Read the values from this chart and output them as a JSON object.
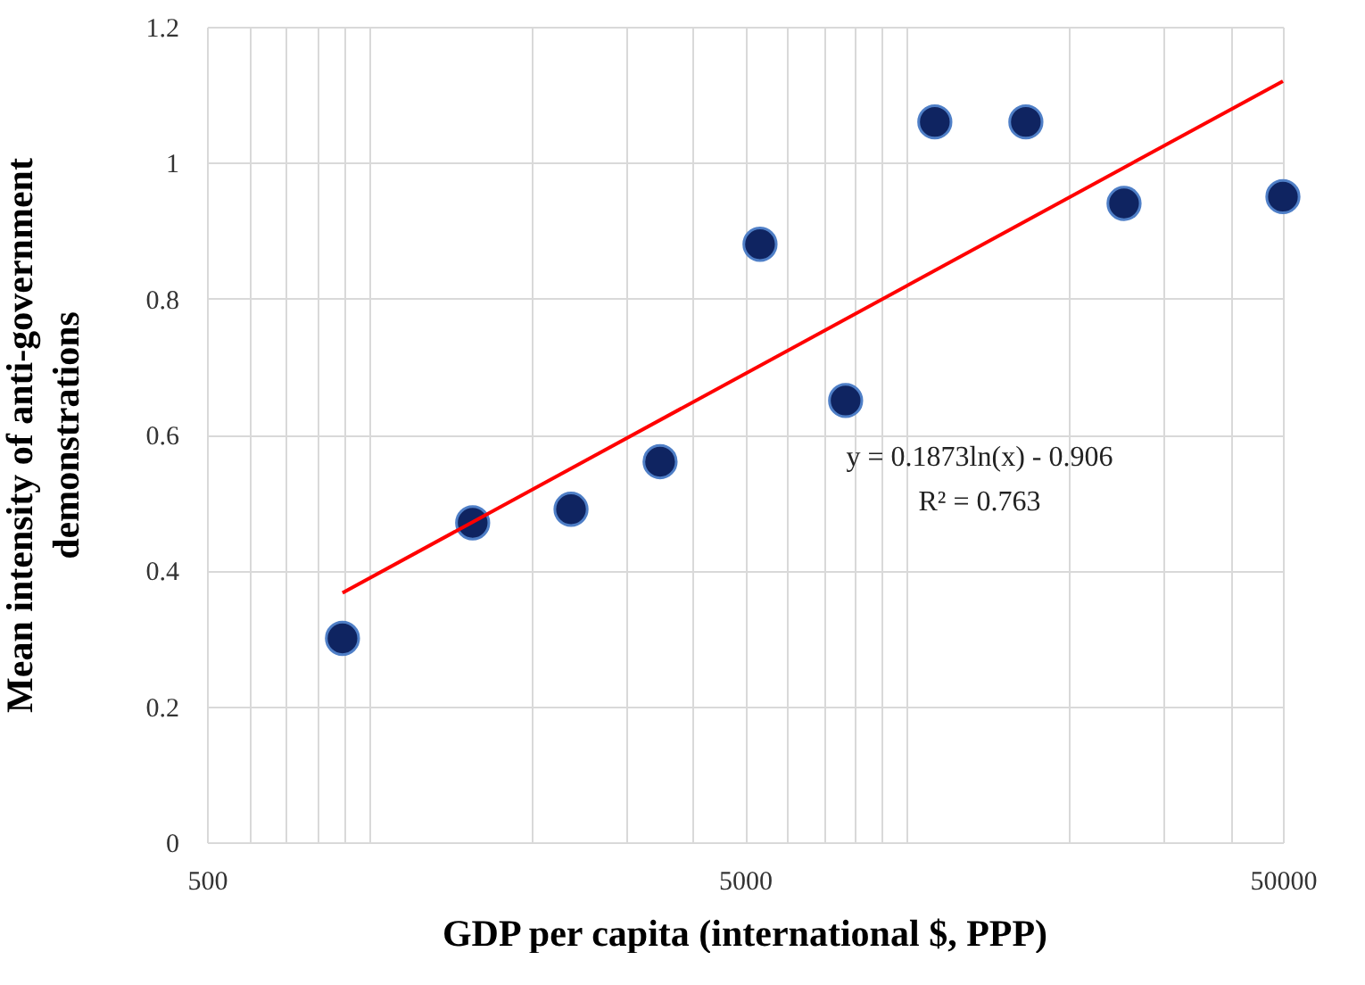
{
  "chart_data": {
    "type": "scatter",
    "xlabel": "GDP per capita (international $, PPP)",
    "ylabel": "Mean intensity of anti-government demonstrations",
    "log": "x",
    "grid": true,
    "marker": "circle",
    "xlim": [
      500,
      50000
    ],
    "ylim": [
      0,
      1.2
    ],
    "xticks": [
      500,
      {
        "value": 600,
        "label": null
      },
      {
        "value": 700,
        "label": null
      },
      {
        "value": 800,
        "label": null
      },
      {
        "value": 900,
        "label": null
      },
      {
        "value": 1000,
        "label": null
      },
      {
        "value": 2000,
        "label": null
      },
      {
        "value": 3000,
        "label": null
      },
      {
        "value": 4000,
        "label": null
      },
      5000,
      {
        "value": 6000,
        "label": null
      },
      {
        "value": 7000,
        "label": null
      },
      {
        "value": 8000,
        "label": null
      },
      {
        "value": 9000,
        "label": null
      },
      {
        "value": 10000,
        "label": null
      },
      {
        "value": 20000,
        "label": null
      },
      {
        "value": 30000,
        "label": null
      },
      {
        "value": 40000,
        "label": null
      },
      50000
    ],
    "yticks": [
      0,
      0.2,
      0.4,
      0.6,
      0.8,
      1,
      1.2
    ],
    "series": [
      {
        "color": "#0f2461",
        "x": [
          893,
          1559,
          2375,
          3477,
          5333,
          7693,
          11270,
          16640,
          25330,
          50000
        ],
        "values": [
          0.3,
          0.47,
          0.49,
          0.56,
          0.88,
          0.65,
          1.06,
          1.06,
          0.94,
          0.95
        ]
      },
      {
        "type": "line",
        "marker": "none",
        "color": "#ff0000",
        "x": [
          893,
          50000
        ],
        "values": [
          0.367,
          1.12
        ]
      }
    ],
    "annotations": [
      "y = 0.1873ln(x) - 0.906",
      "R² = 0.763"
    ]
  }
}
